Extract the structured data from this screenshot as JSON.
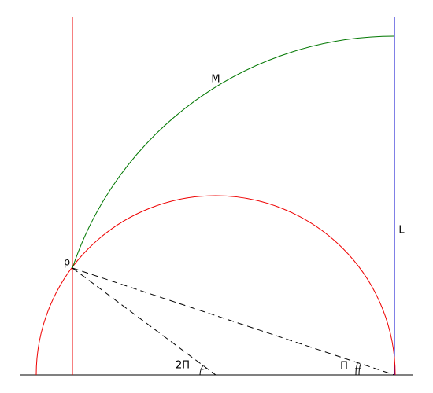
{
  "labels": {
    "arc": "M",
    "vertical_line": "L",
    "point": "p",
    "angle_center": "2Π",
    "angle_edge": "Π"
  }
}
